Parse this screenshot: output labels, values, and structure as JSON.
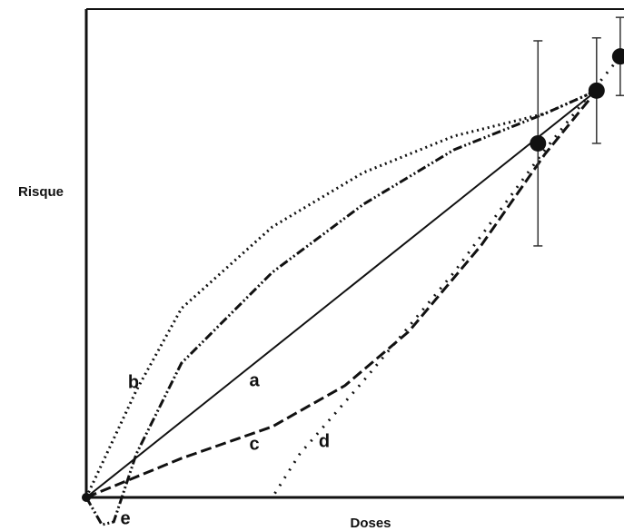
{
  "chart_data": {
    "type": "line",
    "xlabel": "Doses",
    "ylabel": "Risque",
    "xlim": [
      0,
      100
    ],
    "ylim": [
      0,
      100
    ],
    "color": "#111111",
    "series": [
      {
        "name": "a",
        "style": "solid",
        "x": [
          0,
          47.5,
          94.9
        ],
        "values": [
          0,
          41.7,
          83.3
        ]
      },
      {
        "name": "b",
        "style": "dotted",
        "x": [
          0,
          9.3,
          17.7,
          34.6,
          51.5,
          68.4,
          85.3,
          94.9
        ],
        "values": [
          0,
          21.9,
          38.7,
          55.4,
          66.5,
          74.0,
          78.6,
          83.3
        ]
      },
      {
        "name": "c",
        "style": "dashed",
        "x": [
          0,
          17.7,
          34.6,
          48.1,
          60.0,
          73.5,
          85.3,
          94.9
        ],
        "values": [
          0,
          8.0,
          14.5,
          22.9,
          34.0,
          51.7,
          70.3,
          83.3
        ]
      },
      {
        "name": "d",
        "style": "sparse",
        "x": [
          0,
          34.6,
          39.7,
          51.5,
          68.4,
          85.3,
          99.3
        ],
        "values": [
          0,
          0,
          8.9,
          23.8,
          46.1,
          71.2,
          90.3
        ]
      },
      {
        "name": "e",
        "style": "dashdot",
        "x": [
          0,
          2.9,
          5.1,
          9.3,
          17.7,
          34.6,
          51.5,
          68.4,
          85.3,
          94.9
        ],
        "values": [
          0,
          -5.6,
          -5.0,
          8.9,
          27.5,
          46.1,
          60.0,
          71.2,
          78.6,
          83.3
        ]
      }
    ],
    "points": {
      "x": [
        0,
        84.0,
        94.9,
        99.3
      ],
      "values": [
        0,
        72.5,
        83.3,
        90.3
      ],
      "errors": [
        0,
        21,
        10.8,
        8
      ]
    }
  }
}
